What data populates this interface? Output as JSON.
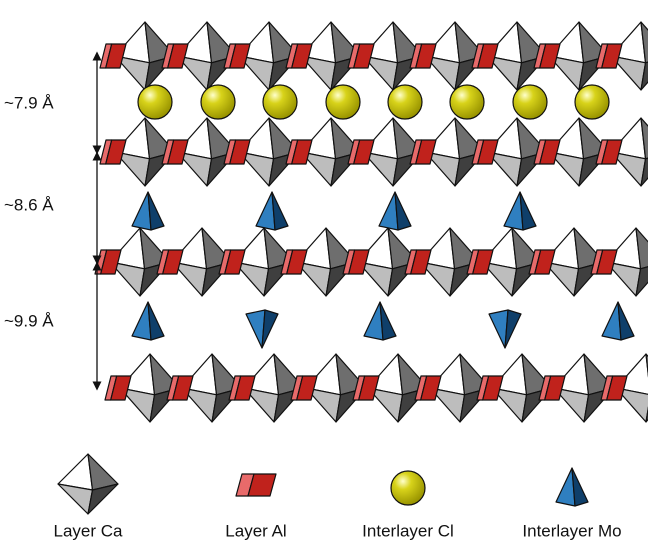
{
  "spacings": [
    "~7.9 Å",
    "~8.6 Å",
    "~9.9 Å"
  ],
  "legend": [
    "Layer Ca",
    "Layer Al",
    "Interlayer Cl",
    "Interlayer Mo"
  ]
}
